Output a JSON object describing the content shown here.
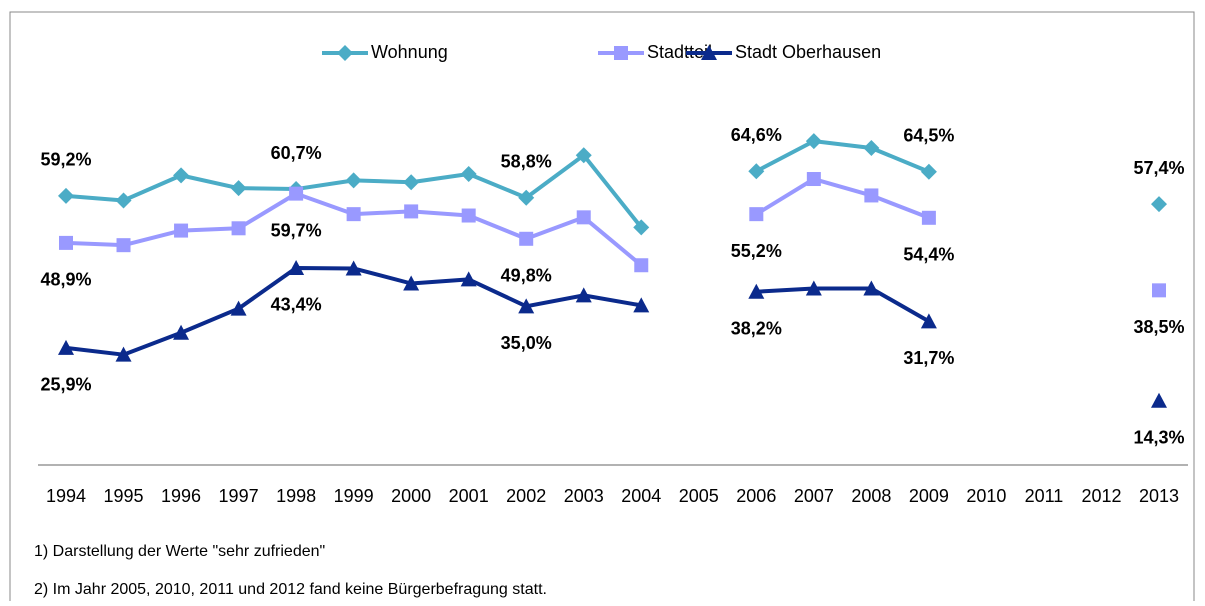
{
  "chart_data": {
    "type": "line",
    "categories": [
      "1994",
      "1995",
      "1996",
      "1997",
      "1998",
      "1999",
      "2000",
      "2001",
      "2002",
      "2003",
      "2004",
      "2005",
      "2006",
      "2007",
      "2008",
      "2009",
      "2010",
      "2011",
      "2012",
      "2013"
    ],
    "ylim": [
      0,
      80
    ],
    "legend": "top",
    "series": [
      {
        "name": "Wohnung",
        "color": "#4bacc6",
        "marker": "diamond",
        "values": [
          59.2,
          58.2,
          63.7,
          60.9,
          60.7,
          62.6,
          62.2,
          64.0,
          58.8,
          68.1,
          52.3,
          null,
          64.6,
          71.2,
          69.7,
          64.5,
          null,
          null,
          null,
          57.4
        ],
        "value_labels": [
          "59,2%",
          null,
          null,
          null,
          "60,7%",
          null,
          null,
          null,
          "58,8%",
          null,
          null,
          null,
          "64,6%",
          null,
          null,
          "64,5%",
          null,
          null,
          null,
          "57,4%"
        ]
      },
      {
        "name": "Stadtteil",
        "color": "#9999ff",
        "marker": "square",
        "values": [
          48.9,
          48.4,
          51.6,
          52.1,
          59.7,
          55.2,
          55.8,
          54.9,
          49.8,
          54.5,
          44.0,
          null,
          55.2,
          62.9,
          59.3,
          54.4,
          null,
          null,
          null,
          38.5
        ],
        "value_labels": [
          "48,9%",
          null,
          null,
          null,
          "59,7%",
          null,
          null,
          null,
          "49,8%",
          null,
          null,
          null,
          "55,2%",
          null,
          null,
          "54,4%",
          null,
          null,
          null,
          "38,5%"
        ]
      },
      {
        "name": "Stadt Oberhausen",
        "color": "#0b2a8c",
        "marker": "triangle",
        "values": [
          25.9,
          24.4,
          29.2,
          34.5,
          43.4,
          43.3,
          40.0,
          40.9,
          35.0,
          37.4,
          35.2,
          null,
          38.2,
          38.9,
          38.9,
          31.7,
          null,
          null,
          null,
          14.3
        ],
        "value_labels": [
          "25,9%",
          null,
          null,
          null,
          "43,4%",
          null,
          null,
          null,
          "35,0%",
          null,
          null,
          null,
          "38,2%",
          null,
          null,
          "31,7%",
          null,
          null,
          null,
          "14,3%"
        ]
      }
    ],
    "notes": [
      "1) Darstellung der Werte \"sehr zufrieden\"",
      "2) Im Jahr 2005, 2010, 2011 und 2012 fand keine Bürgerbefragung statt."
    ]
  }
}
